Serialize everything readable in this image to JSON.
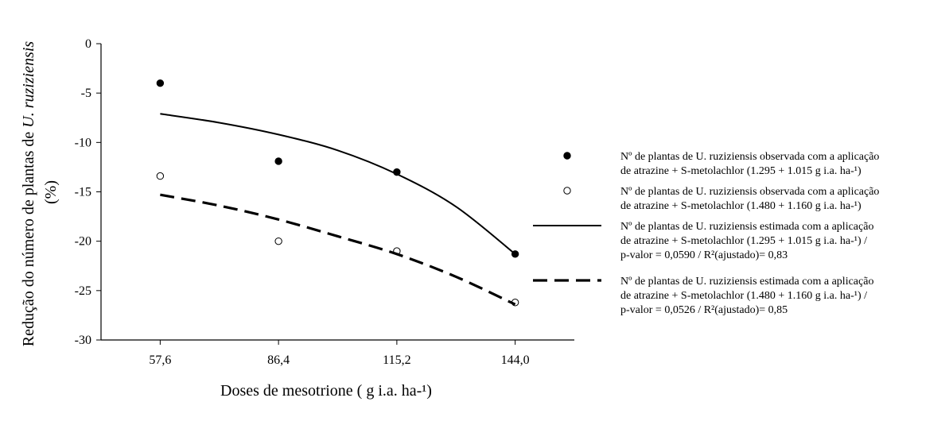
{
  "chart_data": {
    "type": "scatter",
    "title": "",
    "xlabel": "Doses de mesotrione ( g i.a. ha-¹)",
    "ylabel": "Redução do número de plantas de U. ruziziensis (%)",
    "ylabel_parts": {
      "line1_normal": "Redução do número de plantas de ",
      "line1_italic": "U. ruziziensis",
      "line2": "(%)"
    },
    "x_ticks": [
      "57,6",
      "86,4",
      "115,2",
      "144,0"
    ],
    "x_tick_values": [
      57.6,
      86.4,
      115.2,
      144.0
    ],
    "xlim": [
      43.2,
      158.4
    ],
    "y_ticks": [
      "0",
      "-5",
      "-10",
      "-15",
      "-20",
      "-25",
      "-30"
    ],
    "y_tick_values": [
      0,
      -5,
      -10,
      -15,
      -20,
      -25,
      -30
    ],
    "ylim": [
      -30,
      0
    ],
    "grid": false,
    "legend_position": "right",
    "series": [
      {
        "kind": "observed",
        "marker": "filled-circle",
        "x": [
          57.6,
          86.4,
          115.2,
          144.0
        ],
        "y": [
          -4.0,
          -11.9,
          -13.0,
          -21.3
        ],
        "legend": [
          "Nº de plantas de U. ruziziensis observada com a aplicação",
          "de atrazine + S-metolachlor (1.295 + 1.015 g i.a. ha-¹)"
        ]
      },
      {
        "kind": "observed",
        "marker": "open-circle",
        "x": [
          57.6,
          86.4,
          115.2,
          144.0
        ],
        "y": [
          -13.4,
          -20.0,
          -21.0,
          -26.2
        ],
        "legend": [
          "Nº de plantas de U. ruziziensis observada  com a aplicação",
          "de atrazine + S-metolachlor  (1.480 + 1.160 g i.a. ha-¹)"
        ]
      },
      {
        "kind": "fitted",
        "line": "solid",
        "x": [
          57.6,
          72.0,
          86.4,
          100.8,
          115.2,
          129.6,
          144.0
        ],
        "y": [
          -7.1,
          -8.0,
          -9.2,
          -10.8,
          -13.2,
          -16.5,
          -21.3
        ],
        "legend": [
          "Nº de plantas de U. ruziziensis estimada com a aplicação",
          "de atrazine + S-metolachlor (1.295 + 1.015 g i.a. ha-¹)  /",
          "p-valor = 0,0590 / R²(ajustado)= 0,83"
        ]
      },
      {
        "kind": "fitted",
        "line": "dashed",
        "x": [
          57.6,
          72.0,
          86.4,
          100.8,
          115.2,
          129.6,
          144.0
        ],
        "y": [
          -15.3,
          -16.4,
          -17.8,
          -19.5,
          -21.3,
          -23.6,
          -26.4
        ],
        "legend": [
          "Nº de plantas de U. ruziziensis estimada com a aplicação",
          "de atrazine + S-metolachlor (1.480 + 1.160 g i.a. ha-¹)  /",
          "p-valor = 0,0526 / R²(ajustado)= 0,85"
        ]
      }
    ]
  }
}
